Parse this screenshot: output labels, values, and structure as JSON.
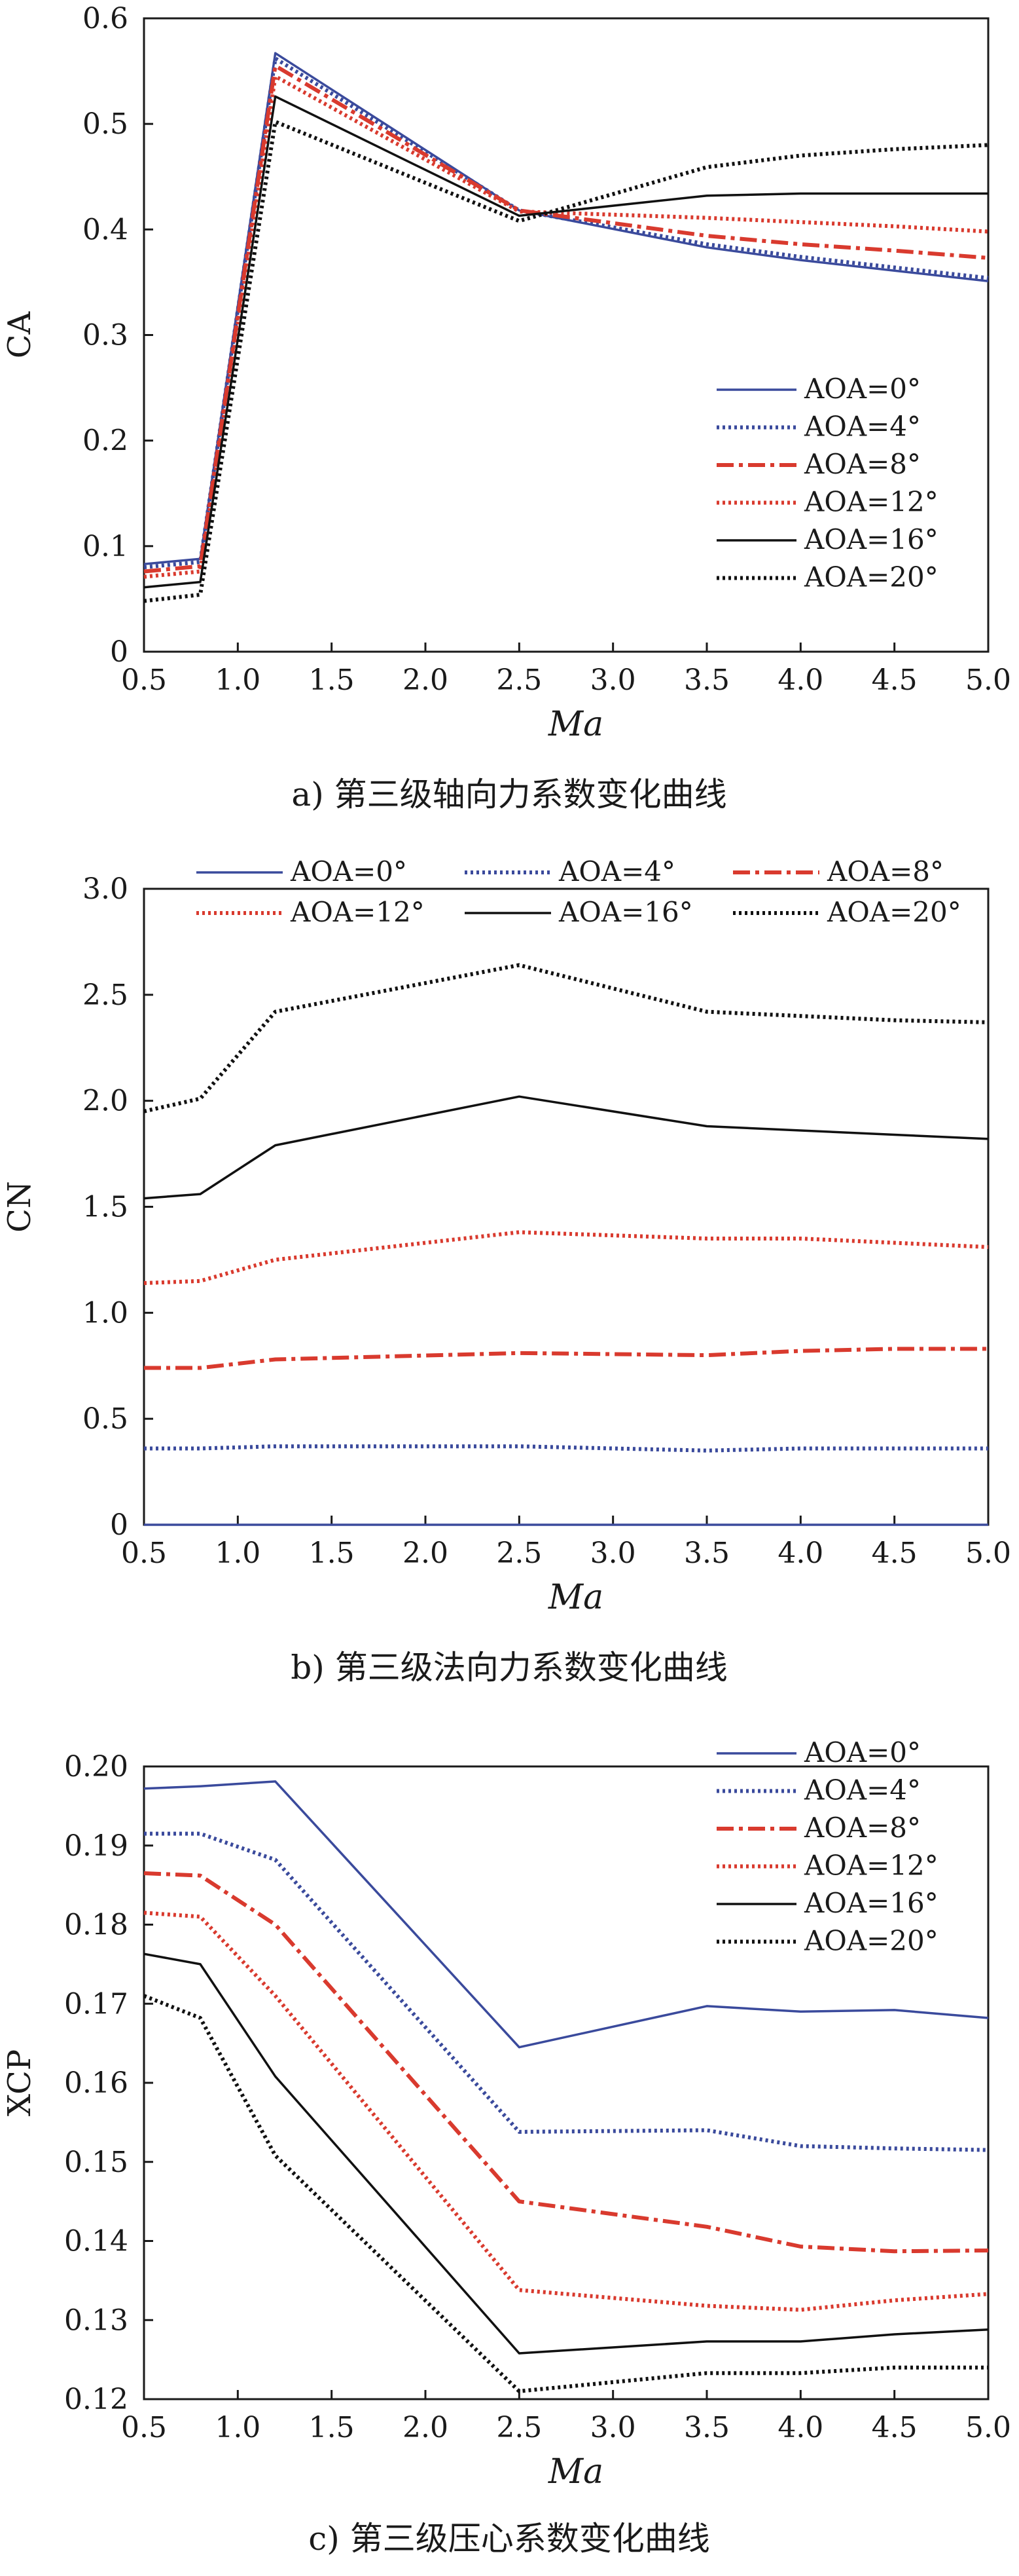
{
  "chart_data": [
    {
      "type": "line",
      "caption": "a) 第三级轴向力系数变化曲线",
      "xlabel": "Ma",
      "ylabel": "CA",
      "xlim": [
        0.5,
        5.0
      ],
      "ylim": [
        0,
        0.6
      ],
      "xticks": [
        "0.5",
        "1.0",
        "1.5",
        "2.0",
        "2.5",
        "3.0",
        "3.5",
        "4.0",
        "4.5",
        "5.0"
      ],
      "yticks": [
        "0",
        "0.1",
        "0.2",
        "0.3",
        "0.4",
        "0.5",
        "0.6"
      ],
      "grid": false,
      "legend_position": "lower-right",
      "x": [
        0.5,
        0.8,
        1.2,
        2.5,
        3.5,
        4.0,
        4.5,
        5.0
      ],
      "series": [
        {
          "name": "AOA=0°",
          "color": "#3a4a9c",
          "style": "solid",
          "values": [
            0.083,
            0.088,
            0.567,
            0.418,
            0.383,
            0.371,
            0.361,
            0.351
          ]
        },
        {
          "name": "AOA=4°",
          "color": "#3a4a9c",
          "style": "dotted",
          "values": [
            0.08,
            0.085,
            0.562,
            0.418,
            0.386,
            0.374,
            0.364,
            0.354
          ]
        },
        {
          "name": "AOA=8°",
          "color": "#d93a2e",
          "style": "dashdot",
          "values": [
            0.076,
            0.081,
            0.555,
            0.418,
            0.394,
            0.386,
            0.38,
            0.373
          ]
        },
        {
          "name": "AOA=12°",
          "color": "#d93a2e",
          "style": "dotted",
          "values": [
            0.071,
            0.076,
            0.545,
            0.417,
            0.411,
            0.407,
            0.403,
            0.398
          ]
        },
        {
          "name": "AOA=16°",
          "color": "#111111",
          "style": "solid",
          "values": [
            0.061,
            0.066,
            0.526,
            0.413,
            0.432,
            0.434,
            0.434,
            0.434
          ]
        },
        {
          "name": "AOA=20°",
          "color": "#111111",
          "style": "dotted",
          "values": [
            0.048,
            0.054,
            0.502,
            0.408,
            0.459,
            0.47,
            0.476,
            0.48
          ]
        }
      ]
    },
    {
      "type": "line",
      "caption": "b) 第三级法向力系数变化曲线",
      "xlabel": "Ma",
      "ylabel": "CN",
      "xlim": [
        0.5,
        5.0
      ],
      "ylim": [
        0,
        3.0
      ],
      "xticks": [
        "0.5",
        "1.0",
        "1.5",
        "2.0",
        "2.5",
        "3.0",
        "3.5",
        "4.0",
        "4.5",
        "5.0"
      ],
      "yticks": [
        "0",
        "0.5",
        "1.0",
        "1.5",
        "2.0",
        "2.5",
        "3.0"
      ],
      "grid": false,
      "legend_position": "top",
      "x": [
        0.5,
        0.8,
        1.2,
        2.5,
        3.5,
        4.0,
        4.5,
        5.0
      ],
      "series": [
        {
          "name": "AOA=0°",
          "color": "#3a4a9c",
          "style": "solid",
          "values": [
            0.0,
            0.0,
            0.0,
            0.0,
            0.0,
            0.0,
            0.0,
            0.0
          ]
        },
        {
          "name": "AOA=4°",
          "color": "#3a4a9c",
          "style": "dotted",
          "values": [
            0.36,
            0.36,
            0.37,
            0.37,
            0.35,
            0.36,
            0.36,
            0.36
          ]
        },
        {
          "name": "AOA=8°",
          "color": "#d93a2e",
          "style": "dashdot",
          "values": [
            0.74,
            0.74,
            0.78,
            0.81,
            0.8,
            0.82,
            0.83,
            0.83
          ]
        },
        {
          "name": "AOA=12°",
          "color": "#d93a2e",
          "style": "dotted",
          "values": [
            1.14,
            1.15,
            1.25,
            1.38,
            1.35,
            1.35,
            1.33,
            1.31
          ]
        },
        {
          "name": "AOA=16°",
          "color": "#111111",
          "style": "solid",
          "values": [
            1.54,
            1.56,
            1.79,
            2.02,
            1.88,
            1.86,
            1.84,
            1.82
          ]
        },
        {
          "name": "AOA=20°",
          "color": "#111111",
          "style": "dotted",
          "values": [
            1.95,
            2.01,
            2.42,
            2.64,
            2.42,
            2.4,
            2.38,
            2.37
          ]
        }
      ]
    },
    {
      "type": "line",
      "caption": "c) 第三级压心系数变化曲线",
      "xlabel": "Ma",
      "ylabel": "XCP",
      "xlim": [
        0.5,
        5.0
      ],
      "ylim": [
        0.12,
        0.2
      ],
      "xticks": [
        "0.5",
        "1.0",
        "1.5",
        "2.0",
        "2.5",
        "3.0",
        "3.5",
        "4.0",
        "4.5",
        "5.0"
      ],
      "yticks": [
        "0.12",
        "0.13",
        "0.14",
        "0.15",
        "0.16",
        "0.17",
        "0.18",
        "0.19",
        "0.20"
      ],
      "grid": false,
      "legend_position": "top-right",
      "x": [
        0.5,
        0.8,
        1.2,
        2.5,
        3.5,
        4.0,
        4.5,
        5.0
      ],
      "series": [
        {
          "name": "AOA=0°",
          "color": "#3a4a9c",
          "style": "solid",
          "values": [
            0.1972,
            0.1975,
            0.1981,
            0.1645,
            0.1697,
            0.169,
            0.1692,
            0.1682
          ]
        },
        {
          "name": "AOA=4°",
          "color": "#3a4a9c",
          "style": "dotted",
          "values": [
            0.1915,
            0.1915,
            0.1882,
            0.1538,
            0.154,
            0.152,
            0.1517,
            0.1515
          ]
        },
        {
          "name": "AOA=8°",
          "color": "#d93a2e",
          "style": "dashdot",
          "values": [
            0.1865,
            0.1862,
            0.18,
            0.145,
            0.1418,
            0.1393,
            0.1387,
            0.1388
          ]
        },
        {
          "name": "AOA=12°",
          "color": "#d93a2e",
          "style": "dotted",
          "values": [
            0.1815,
            0.181,
            0.171,
            0.1338,
            0.1318,
            0.1313,
            0.1325,
            0.1333
          ]
        },
        {
          "name": "AOA=16°",
          "color": "#111111",
          "style": "solid",
          "values": [
            0.1763,
            0.175,
            0.1608,
            0.1258,
            0.1273,
            0.1273,
            0.1282,
            0.1288
          ]
        },
        {
          "name": "AOA=20°",
          "color": "#111111",
          "style": "dotted",
          "values": [
            0.171,
            0.1682,
            0.1508,
            0.121,
            0.1233,
            0.1233,
            0.124,
            0.124
          ]
        }
      ]
    }
  ]
}
